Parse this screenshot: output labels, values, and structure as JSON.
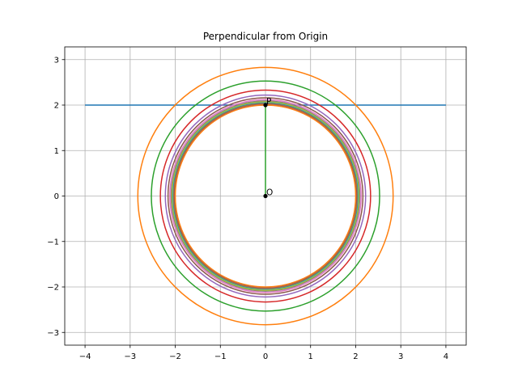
{
  "chart_data": {
    "type": "line",
    "title": "Perpendicular from Origin",
    "xlabel": "",
    "ylabel": "",
    "xlim": [
      -4.45,
      4.45
    ],
    "ylim": [
      -3.28,
      3.28
    ],
    "xticks": [
      -4,
      -3,
      -2,
      -1,
      0,
      1,
      2,
      3,
      4
    ],
    "yticks": [
      -3,
      -2,
      -1,
      0,
      1,
      2,
      3
    ],
    "xtick_labels": [
      "−4",
      "−3",
      "−2",
      "−1",
      "0",
      "1",
      "2",
      "3",
      "4"
    ],
    "ytick_labels": [
      "−3",
      "−2",
      "−1",
      "0",
      "1",
      "2",
      "3"
    ],
    "grid": true,
    "aspect": "equal",
    "line": {
      "x": [
        -4,
        4
      ],
      "y": [
        2,
        2
      ],
      "color": "#1f77b4"
    },
    "perpendicular": {
      "x": [
        0,
        0
      ],
      "y": [
        0,
        2
      ],
      "color": "#2ca02c"
    },
    "points": [
      {
        "label": "O",
        "x": 0,
        "y": 0
      },
      {
        "label": "P",
        "x": 0,
        "y": 2
      }
    ],
    "circles": [
      {
        "center": [
          0,
          0
        ],
        "radius": 2.83,
        "color": "#ff7f0e"
      },
      {
        "center": [
          0,
          0
        ],
        "radius": 2.53,
        "color": "#2ca02c"
      },
      {
        "center": [
          0,
          0
        ],
        "radius": 2.33,
        "color": "#d62728"
      },
      {
        "center": [
          0,
          0
        ],
        "radius": 2.22,
        "color": "#9467bd"
      },
      {
        "center": [
          0,
          0
        ],
        "radius": 2.16,
        "color": "#8c564b"
      },
      {
        "center": [
          0,
          0
        ],
        "radius": 2.12,
        "color": "#e377c2"
      },
      {
        "center": [
          0,
          0
        ],
        "radius": 2.09,
        "color": "#7f7f7f"
      },
      {
        "center": [
          0,
          0
        ],
        "radius": 2.07,
        "color": "#bcbd22"
      },
      {
        "center": [
          0,
          0
        ],
        "radius": 2.05,
        "color": "#17becf"
      },
      {
        "center": [
          0,
          0
        ],
        "radius": 2.04,
        "color": "#1f77b4"
      },
      {
        "center": [
          0,
          0
        ],
        "radius": 2.03,
        "color": "#ff7f0e"
      },
      {
        "center": [
          0,
          0
        ],
        "radius": 2.02,
        "color": "#2ca02c"
      },
      {
        "center": [
          0,
          0
        ],
        "radius": 2.015,
        "color": "#d62728"
      },
      {
        "center": [
          0,
          0
        ],
        "radius": 2.01,
        "color": "#9467bd"
      },
      {
        "center": [
          0,
          0
        ],
        "radius": 2.005,
        "color": "#8c564b"
      },
      {
        "center": [
          0,
          0
        ],
        "radius": 2.0,
        "color": "#ff7f0e"
      }
    ]
  }
}
